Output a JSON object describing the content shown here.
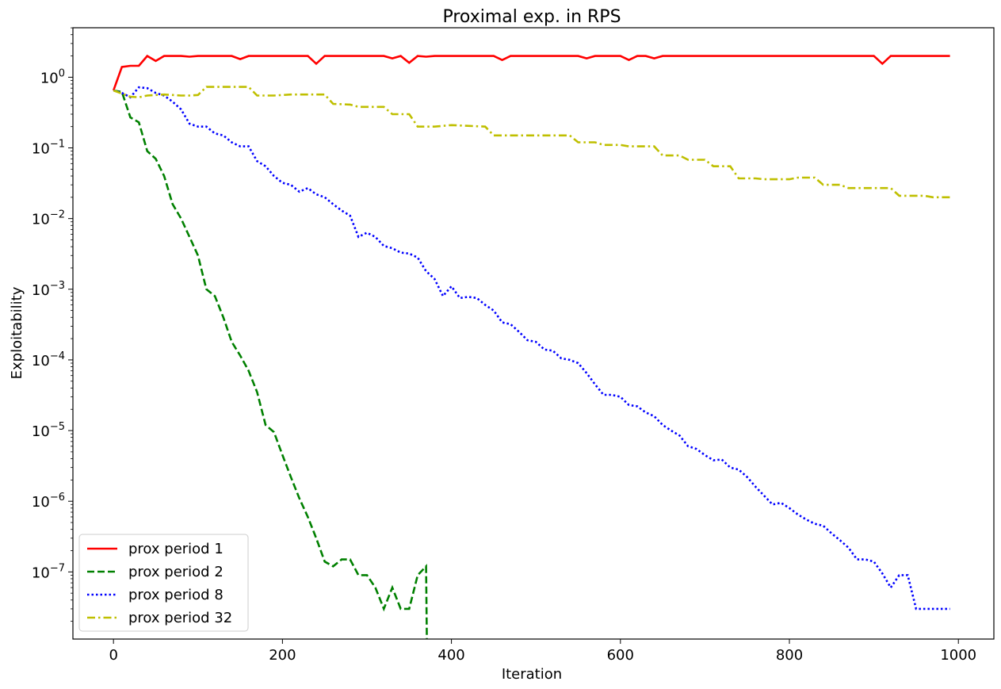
{
  "chart_data": {
    "type": "line",
    "title": "Proximal exp. in RPS",
    "xlabel": "Iteration",
    "ylabel": "Exploitability",
    "xlim": [
      -48,
      1042
    ],
    "ylim_log10": [
      -7.95,
      0.7
    ],
    "yscale": "log",
    "grid": false,
    "legend_placement": "bottom-left",
    "x_ticks": [
      0,
      200,
      400,
      600,
      800,
      1000
    ],
    "x_tick_labels": [
      "0",
      "200",
      "400",
      "600",
      "800",
      "1000"
    ],
    "y_ticks_log10": [
      0,
      -1,
      -2,
      -3,
      -4,
      -5,
      -6,
      -7
    ],
    "series": [
      {
        "name": "prox period 1",
        "color": "#ff0000",
        "dash": "solid",
        "points": [
          [
            0,
            0.65
          ],
          [
            10,
            1.4
          ],
          [
            20,
            1.45
          ],
          [
            30,
            1.45
          ],
          [
            40,
            2.0
          ],
          [
            50,
            1.7
          ],
          [
            60,
            2.0
          ],
          [
            70,
            2.0
          ],
          [
            80,
            2.0
          ],
          [
            90,
            1.95
          ],
          [
            100,
            2.0
          ],
          [
            110,
            2.0
          ],
          [
            120,
            2.0
          ],
          [
            130,
            2.0
          ],
          [
            140,
            2.0
          ],
          [
            150,
            1.8
          ],
          [
            160,
            2.0
          ],
          [
            170,
            2.0
          ],
          [
            180,
            2.0
          ],
          [
            190,
            2.0
          ],
          [
            200,
            2.0
          ],
          [
            210,
            2.0
          ],
          [
            220,
            2.0
          ],
          [
            230,
            2.0
          ],
          [
            240,
            1.55
          ],
          [
            250,
            2.0
          ],
          [
            260,
            2.0
          ],
          [
            270,
            2.0
          ],
          [
            280,
            2.0
          ],
          [
            290,
            2.0
          ],
          [
            300,
            2.0
          ],
          [
            310,
            2.0
          ],
          [
            320,
            2.0
          ],
          [
            330,
            1.85
          ],
          [
            340,
            2.0
          ],
          [
            350,
            1.6
          ],
          [
            360,
            2.0
          ],
          [
            370,
            1.95
          ],
          [
            380,
            2.0
          ],
          [
            400,
            2.0
          ],
          [
            420,
            2.0
          ],
          [
            440,
            2.0
          ],
          [
            450,
            2.0
          ],
          [
            460,
            1.75
          ],
          [
            470,
            2.0
          ],
          [
            480,
            2.0
          ],
          [
            500,
            2.0
          ],
          [
            520,
            2.0
          ],
          [
            540,
            2.0
          ],
          [
            550,
            2.0
          ],
          [
            560,
            1.85
          ],
          [
            570,
            2.0
          ],
          [
            580,
            2.0
          ],
          [
            600,
            2.0
          ],
          [
            610,
            1.75
          ],
          [
            620,
            2.0
          ],
          [
            630,
            2.0
          ],
          [
            640,
            1.85
          ],
          [
            650,
            2.0
          ],
          [
            660,
            2.0
          ],
          [
            700,
            2.0
          ],
          [
            750,
            2.0
          ],
          [
            800,
            2.0
          ],
          [
            850,
            2.0
          ],
          [
            880,
            2.0
          ],
          [
            900,
            2.0
          ],
          [
            910,
            1.55
          ],
          [
            920,
            2.0
          ],
          [
            930,
            2.0
          ],
          [
            950,
            2.0
          ],
          [
            980,
            2.0
          ],
          [
            990,
            2.0
          ]
        ]
      },
      {
        "name": "prox period 2",
        "color": "#008000",
        "dash": "dashed",
        "points": [
          [
            0,
            0.65
          ],
          [
            10,
            0.62
          ],
          [
            20,
            0.27
          ],
          [
            30,
            0.23
          ],
          [
            40,
            0.09
          ],
          [
            50,
            0.07
          ],
          [
            60,
            0.04
          ],
          [
            70,
            0.016
          ],
          [
            80,
            0.01
          ],
          [
            90,
            0.0055
          ],
          [
            100,
            0.003
          ],
          [
            110,
            0.001
          ],
          [
            120,
            0.0008
          ],
          [
            130,
            0.0004
          ],
          [
            140,
            0.00018
          ],
          [
            150,
            0.000115
          ],
          [
            160,
            7e-05
          ],
          [
            170,
            3.5e-05
          ],
          [
            180,
            1.2e-05
          ],
          [
            190,
            9.5e-06
          ],
          [
            200,
            4.5e-06
          ],
          [
            210,
            2.2e-06
          ],
          [
            220,
            1.1e-06
          ],
          [
            230,
            6e-07
          ],
          [
            240,
            3e-07
          ],
          [
            250,
            1.4e-07
          ],
          [
            260,
            1.2e-07
          ],
          [
            270,
            1.5e-07
          ],
          [
            280,
            1.5e-07
          ],
          [
            290,
            9e-08
          ],
          [
            300,
            9e-08
          ],
          [
            310,
            6e-08
          ],
          [
            320,
            3e-08
          ],
          [
            330,
            6e-08
          ],
          [
            340,
            3e-08
          ],
          [
            350,
            3e-08
          ],
          [
            360,
            9e-08
          ],
          [
            370,
            1.2e-07
          ],
          [
            371,
            8e-09
          ]
        ]
      },
      {
        "name": "prox period 8",
        "color": "#0000ff",
        "dash": "dotted",
        "points": [
          [
            0,
            0.65
          ],
          [
            10,
            0.6
          ],
          [
            20,
            0.52
          ],
          [
            30,
            0.72
          ],
          [
            40,
            0.7
          ],
          [
            50,
            0.6
          ],
          [
            60,
            0.55
          ],
          [
            70,
            0.45
          ],
          [
            80,
            0.35
          ],
          [
            90,
            0.22
          ],
          [
            100,
            0.2
          ],
          [
            110,
            0.2
          ],
          [
            120,
            0.16
          ],
          [
            130,
            0.15
          ],
          [
            140,
            0.12
          ],
          [
            150,
            0.105
          ],
          [
            160,
            0.105
          ],
          [
            170,
            0.065
          ],
          [
            180,
            0.055
          ],
          [
            190,
            0.04
          ],
          [
            200,
            0.032
          ],
          [
            210,
            0.03
          ],
          [
            220,
            0.024
          ],
          [
            230,
            0.027
          ],
          [
            240,
            0.022
          ],
          [
            250,
            0.02
          ],
          [
            260,
            0.016
          ],
          [
            270,
            0.013
          ],
          [
            280,
            0.011
          ],
          [
            290,
            0.0055
          ],
          [
            300,
            0.0063
          ],
          [
            310,
            0.0055
          ],
          [
            320,
            0.0041
          ],
          [
            330,
            0.0038
          ],
          [
            340,
            0.0033
          ],
          [
            350,
            0.0032
          ],
          [
            360,
            0.0028
          ],
          [
            370,
            0.0018
          ],
          [
            380,
            0.0014
          ],
          [
            390,
            0.0008
          ],
          [
            400,
            0.0011
          ],
          [
            410,
            0.00075
          ],
          [
            420,
            0.00078
          ],
          [
            430,
            0.00075
          ],
          [
            440,
            0.0006
          ],
          [
            450,
            0.0005
          ],
          [
            460,
            0.00034
          ],
          [
            470,
            0.00032
          ],
          [
            480,
            0.00025
          ],
          [
            490,
            0.00019
          ],
          [
            500,
            0.00018
          ],
          [
            510,
            0.00014
          ],
          [
            520,
            0.000135
          ],
          [
            530,
            0.000105
          ],
          [
            540,
            0.0001
          ],
          [
            550,
            9e-05
          ],
          [
            560,
            6.5e-05
          ],
          [
            570,
            4.5e-05
          ],
          [
            580,
            3.2e-05
          ],
          [
            590,
            3.2e-05
          ],
          [
            600,
            3e-05
          ],
          [
            610,
            2.3e-05
          ],
          [
            620,
            2.2e-05
          ],
          [
            630,
            1.8e-05
          ],
          [
            640,
            1.6e-05
          ],
          [
            650,
            1.2e-05
          ],
          [
            660,
            1e-05
          ],
          [
            670,
            8.5e-06
          ],
          [
            680,
            6e-06
          ],
          [
            690,
            5.5e-06
          ],
          [
            700,
            4.5e-06
          ],
          [
            710,
            3.8e-06
          ],
          [
            720,
            3.9e-06
          ],
          [
            730,
            3e-06
          ],
          [
            740,
            2.8e-06
          ],
          [
            750,
            2.2e-06
          ],
          [
            760,
            1.6e-06
          ],
          [
            770,
            1.2e-06
          ],
          [
            780,
            9e-07
          ],
          [
            790,
            9.5e-07
          ],
          [
            800,
            8e-07
          ],
          [
            810,
            6.5e-07
          ],
          [
            820,
            5.5e-07
          ],
          [
            830,
            4.8e-07
          ],
          [
            840,
            4.5e-07
          ],
          [
            850,
            3.5e-07
          ],
          [
            860,
            2.8e-07
          ],
          [
            870,
            2.2e-07
          ],
          [
            880,
            1.5e-07
          ],
          [
            890,
            1.5e-07
          ],
          [
            900,
            1.4e-07
          ],
          [
            910,
            9.5e-08
          ],
          [
            920,
            6e-08
          ],
          [
            930,
            9e-08
          ],
          [
            940,
            9e-08
          ],
          [
            950,
            3e-08
          ],
          [
            960,
            3e-08
          ],
          [
            990,
            3e-08
          ]
        ]
      },
      {
        "name": "prox period 32",
        "color": "#bfbf00",
        "dash": "dashdot",
        "points": [
          [
            0,
            0.65
          ],
          [
            20,
            0.53
          ],
          [
            30,
            0.52
          ],
          [
            40,
            0.55
          ],
          [
            50,
            0.56
          ],
          [
            60,
            0.57
          ],
          [
            70,
            0.56
          ],
          [
            80,
            0.55
          ],
          [
            90,
            0.55
          ],
          [
            100,
            0.56
          ],
          [
            110,
            0.73
          ],
          [
            140,
            0.73
          ],
          [
            160,
            0.73
          ],
          [
            170,
            0.55
          ],
          [
            190,
            0.55
          ],
          [
            210,
            0.57
          ],
          [
            240,
            0.57
          ],
          [
            250,
            0.57
          ],
          [
            260,
            0.42
          ],
          [
            280,
            0.41
          ],
          [
            290,
            0.38
          ],
          [
            320,
            0.38
          ],
          [
            330,
            0.3
          ],
          [
            350,
            0.3
          ],
          [
            360,
            0.2
          ],
          [
            380,
            0.2
          ],
          [
            400,
            0.21
          ],
          [
            440,
            0.2
          ],
          [
            450,
            0.15
          ],
          [
            480,
            0.15
          ],
          [
            500,
            0.15
          ],
          [
            540,
            0.15
          ],
          [
            550,
            0.12
          ],
          [
            570,
            0.12
          ],
          [
            580,
            0.11
          ],
          [
            600,
            0.11
          ],
          [
            610,
            0.105
          ],
          [
            640,
            0.105
          ],
          [
            650,
            0.078
          ],
          [
            670,
            0.078
          ],
          [
            680,
            0.068
          ],
          [
            700,
            0.068
          ],
          [
            710,
            0.055
          ],
          [
            730,
            0.055
          ],
          [
            740,
            0.037
          ],
          [
            760,
            0.037
          ],
          [
            770,
            0.036
          ],
          [
            800,
            0.036
          ],
          [
            810,
            0.038
          ],
          [
            830,
            0.038
          ],
          [
            840,
            0.03
          ],
          [
            860,
            0.03
          ],
          [
            870,
            0.027
          ],
          [
            880,
            0.027
          ],
          [
            920,
            0.027
          ],
          [
            930,
            0.021
          ],
          [
            960,
            0.021
          ],
          [
            970,
            0.02
          ],
          [
            990,
            0.02
          ]
        ]
      }
    ]
  }
}
